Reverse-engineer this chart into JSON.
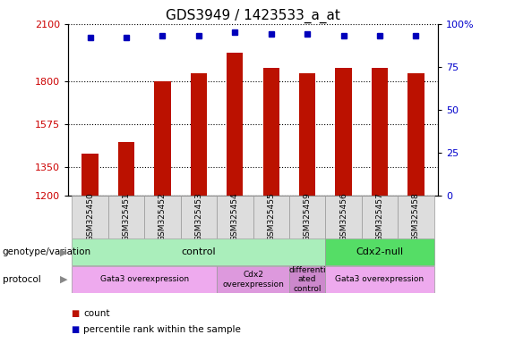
{
  "title": "GDS3949 / 1423533_a_at",
  "samples": [
    "GSM325450",
    "GSM325451",
    "GSM325452",
    "GSM325453",
    "GSM325454",
    "GSM325455",
    "GSM325459",
    "GSM325456",
    "GSM325457",
    "GSM325458"
  ],
  "counts": [
    1420,
    1480,
    1800,
    1840,
    1950,
    1870,
    1840,
    1870,
    1870,
    1840
  ],
  "percentile": [
    92,
    92,
    93,
    93,
    95,
    94,
    94,
    93,
    93,
    93
  ],
  "ylim_left": [
    1200,
    2100
  ],
  "ylim_right": [
    0,
    100
  ],
  "yticks_left": [
    1200,
    1350,
    1575,
    1800,
    2100
  ],
  "yticks_right": [
    0,
    25,
    50,
    75,
    100
  ],
  "bar_color": "#bb1100",
  "dot_color": "#0000bb",
  "grid_color": "#000000",
  "bg_color": "#ffffff",
  "genotype_groups": [
    {
      "label": "control",
      "start": 0,
      "end": 7,
      "color": "#aaeebb"
    },
    {
      "label": "Cdx2-null",
      "start": 7,
      "end": 10,
      "color": "#55dd66"
    }
  ],
  "protocol_groups": [
    {
      "label": "Gata3 overexpression",
      "start": 0,
      "end": 4,
      "color": "#eeaaee"
    },
    {
      "label": "Cdx2\noverexpression",
      "start": 4,
      "end": 6,
      "color": "#dd99dd"
    },
    {
      "label": "differenti\nated\ncontrol",
      "start": 6,
      "end": 7,
      "color": "#cc88cc"
    },
    {
      "label": "Gata3 overexpression",
      "start": 7,
      "end": 10,
      "color": "#eeaaee"
    }
  ],
  "left_label_color": "#cc0000",
  "right_label_color": "#0000cc",
  "title_fontsize": 11,
  "tick_fontsize": 8,
  "label_fontsize": 8,
  "bar_width": 0.45
}
